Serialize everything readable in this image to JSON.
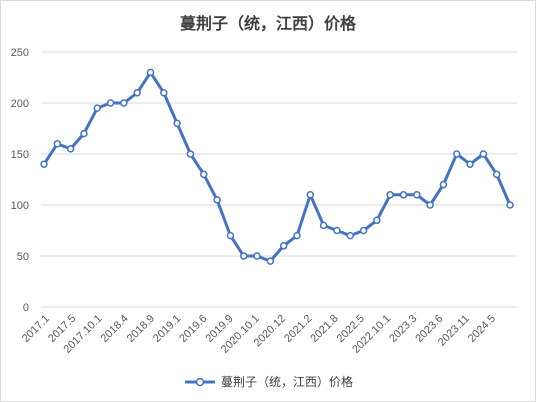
{
  "chart_data": {
    "type": "line",
    "title": "蔓荆子（统，江西）价格",
    "xlabel": "",
    "ylabel": "",
    "ylim": [
      0,
      250
    ],
    "yticks": [
      0,
      50,
      100,
      150,
      200,
      250
    ],
    "grid": true,
    "legend_position": "bottom",
    "x_tick_labels": [
      "2017.1",
      "2017.5",
      "2017.10.1",
      "2018.4",
      "2018.9",
      "2019.1",
      "2019.6",
      "2019.9",
      "2020.10.1",
      "2020.12",
      "2021.2",
      "2021.8",
      "2022.5",
      "2022.10.1",
      "2023.3",
      "2023.6",
      "2023.11",
      "2024.5"
    ],
    "series": [
      {
        "name": "蔓荆子（统，江西）价格",
        "color": "#4472c4",
        "values": [
          140,
          160,
          155,
          170,
          195,
          200,
          200,
          210,
          230,
          210,
          180,
          150,
          130,
          105,
          70,
          50,
          50,
          45,
          60,
          70,
          110,
          80,
          75,
          70,
          75,
          85,
          110,
          110,
          110,
          100,
          120,
          150,
          140,
          150,
          130,
          100
        ]
      }
    ]
  }
}
